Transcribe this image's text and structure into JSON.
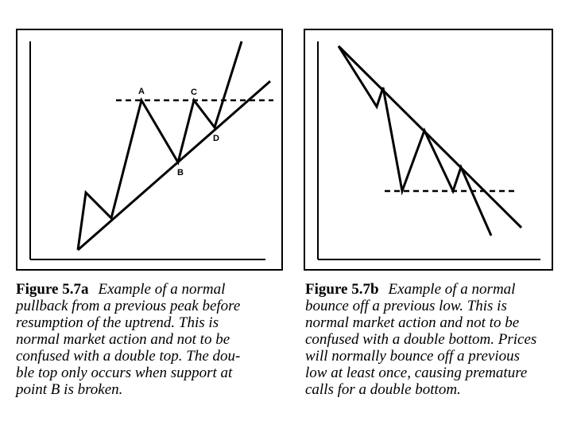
{
  "figure_a": {
    "number": "Figure 5.7a",
    "caption_lines": [
      "Example of a normal",
      "pullback from a previous peak before",
      "resumption of the uptrend. This is",
      "normal market action and not to be",
      "confused with a double top. The dou-",
      "ble top only occurs when support at",
      "point B is broken."
    ],
    "point_labels": {
      "a": "A",
      "b": "B",
      "c": "C",
      "d": "D"
    }
  },
  "figure_b": {
    "number": "Figure 5.7b",
    "caption_lines": [
      "Example of a normal",
      "bounce off a previous low. This is",
      "normal market action and not to be",
      "confused with a double bottom. Prices",
      "will normally bounce off a previous",
      "low at least once, causing premature",
      "calls for a double bottom."
    ]
  },
  "colors": {
    "ink": "#000000",
    "background": "#ffffff"
  }
}
